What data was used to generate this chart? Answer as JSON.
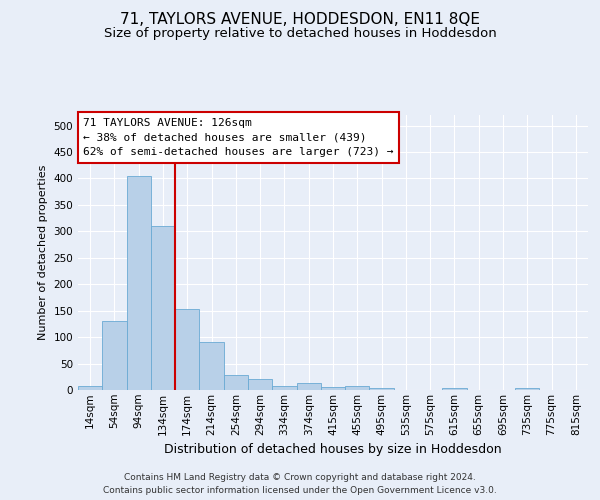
{
  "title": "71, TAYLORS AVENUE, HODDESDON, EN11 8QE",
  "subtitle": "Size of property relative to detached houses in Hoddesdon",
  "xlabel": "Distribution of detached houses by size in Hoddesdon",
  "ylabel": "Number of detached properties",
  "footer1": "Contains HM Land Registry data © Crown copyright and database right 2024.",
  "footer2": "Contains public sector information licensed under the Open Government Licence v3.0.",
  "bar_labels": [
    "14sqm",
    "54sqm",
    "94sqm",
    "134sqm",
    "174sqm",
    "214sqm",
    "254sqm",
    "294sqm",
    "334sqm",
    "374sqm",
    "415sqm",
    "455sqm",
    "495sqm",
    "535sqm",
    "575sqm",
    "615sqm",
    "655sqm",
    "695sqm",
    "735sqm",
    "775sqm",
    "815sqm"
  ],
  "bar_values": [
    7,
    130,
    405,
    310,
    153,
    90,
    28,
    20,
    8,
    13,
    5,
    7,
    3,
    0,
    0,
    3,
    0,
    0,
    3,
    0,
    0
  ],
  "bar_color": "#b8d0e8",
  "bar_edge_color": "#6aaad4",
  "property_label": "71 TAYLORS AVENUE: 126sqm",
  "annotation_line1": "← 38% of detached houses are smaller (439)",
  "annotation_line2": "62% of semi-detached houses are larger (723) →",
  "vline_color": "#cc0000",
  "vline_position": 3.5,
  "ylim": [
    0,
    520
  ],
  "yticks": [
    0,
    50,
    100,
    150,
    200,
    250,
    300,
    350,
    400,
    450,
    500
  ],
  "bg_color": "#e8eef8",
  "plot_bg_color": "#e8eef8",
  "annotation_box_color": "#ffffff",
  "annotation_box_edge": "#cc0000",
  "grid_color": "#ffffff",
  "title_fontsize": 11,
  "subtitle_fontsize": 9.5,
  "xlabel_fontsize": 9,
  "ylabel_fontsize": 8,
  "tick_fontsize": 7.5,
  "annotation_fontsize": 8,
  "footer_fontsize": 6.5
}
